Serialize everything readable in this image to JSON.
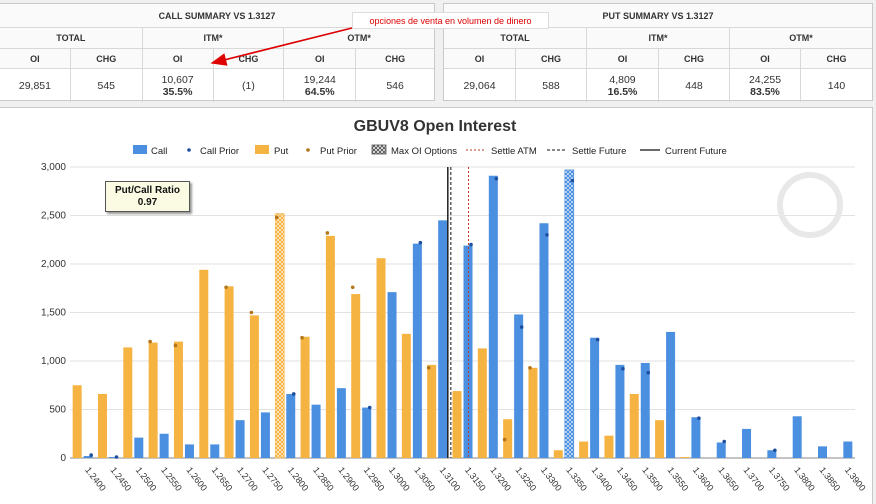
{
  "call_summary": {
    "title": "CALL SUMMARY VS 1.3127",
    "groups": [
      "TOTAL",
      "ITM*",
      "OTM*"
    ],
    "cols": [
      "OI",
      "CHG",
      "OI",
      "CHG",
      "OI",
      "CHG"
    ],
    "total_oi": "29,851",
    "total_chg": "545",
    "itm_oi": "10,607",
    "itm_pct": "35.5%",
    "itm_chg": "(1)",
    "otm_oi": "19,244",
    "otm_pct": "64.5%",
    "otm_chg": "546"
  },
  "put_summary": {
    "title": "PUT SUMMARY VS 1.3127",
    "groups": [
      "TOTAL",
      "ITM*",
      "OTM*"
    ],
    "cols": [
      "OI",
      "CHG",
      "OI",
      "CHG",
      "OI",
      "CHG"
    ],
    "total_oi": "29,064",
    "total_chg": "588",
    "itm_oi": "4,809",
    "itm_pct": "16.5%",
    "itm_chg": "448",
    "otm_oi": "24,255",
    "otm_pct": "83.5%",
    "otm_chg": "140"
  },
  "annotation": "opciones de venta en volumen de dinero",
  "colors": {
    "call": "#4a8fe0",
    "put": "#f5b342",
    "call_prior": "#1e4e9e",
    "put_prior": "#b3741a",
    "positive": "#2e8b2e",
    "negative": "#cc3333",
    "annotation": "#dd0000"
  },
  "ratio": {
    "label": "Put/Call Ratio",
    "value": "0.97"
  },
  "chart_data": {
    "type": "bar",
    "title": "GBUV8 Open Interest",
    "legend": [
      "Call",
      "Call Prior",
      "Put",
      "Put Prior",
      "Max OI Options",
      "Settle ATM",
      "Settle Future",
      "Current Future"
    ],
    "legend_position": "top",
    "ylim": [
      0,
      3000
    ],
    "yticks": [
      "0",
      "500",
      "1,000",
      "1,500",
      "2,000",
      "2,500",
      "3,000"
    ],
    "categories": [
      "1.2400",
      "1.2450",
      "1.2500",
      "1.2550",
      "1.2600",
      "1.2650",
      "1.2700",
      "1.2750",
      "1.2800",
      "1.2850",
      "1.2900",
      "1.2950",
      "1.3000",
      "1.3050",
      "1.3100",
      "1.3150",
      "1.3200",
      "1.3250",
      "1.3300",
      "1.3350",
      "1.3400",
      "1.3450",
      "1.3500",
      "1.3550",
      "1.3600",
      "1.3650",
      "1.3700",
      "1.3750",
      "1.3800",
      "1.3850",
      "1.3900"
    ],
    "series": [
      {
        "name": "Call",
        "values": [
          20,
          10,
          210,
          250,
          140,
          140,
          390,
          470,
          660,
          550,
          720,
          520,
          1710,
          2210,
          2450,
          2190,
          2910,
          1480,
          2420,
          2970,
          1240,
          960,
          980,
          1300,
          420,
          160,
          300,
          80,
          430,
          120,
          170
        ]
      },
      {
        "name": "Call Prior",
        "values": [
          30,
          10,
          null,
          null,
          null,
          null,
          null,
          null,
          660,
          null,
          null,
          520,
          null,
          2220,
          null,
          2200,
          2880,
          1350,
          2300,
          2860,
          1220,
          920,
          880,
          null,
          410,
          170,
          null,
          80,
          null,
          null,
          null
        ]
      },
      {
        "name": "Put",
        "values": [
          750,
          660,
          1140,
          1190,
          1200,
          1940,
          1770,
          1470,
          2520,
          1250,
          2290,
          1690,
          2060,
          1280,
          960,
          690,
          1130,
          400,
          930,
          80,
          170,
          230,
          660,
          390,
          10,
          0,
          0,
          0,
          0,
          0,
          0
        ]
      },
      {
        "name": "Put Prior",
        "values": [
          null,
          null,
          null,
          1200,
          1160,
          null,
          1760,
          1500,
          2480,
          1240,
          2320,
          1760,
          null,
          null,
          930,
          null,
          null,
          190,
          930,
          null,
          null,
          null,
          null,
          null,
          null,
          null,
          null,
          null,
          null,
          null,
          null
        ]
      }
    ],
    "max_oi": {
      "call": "1.3350",
      "put": "1.2800"
    },
    "settle_atm": "1.3150",
    "settle_future": "1.3127",
    "current_future": "1.3121"
  }
}
